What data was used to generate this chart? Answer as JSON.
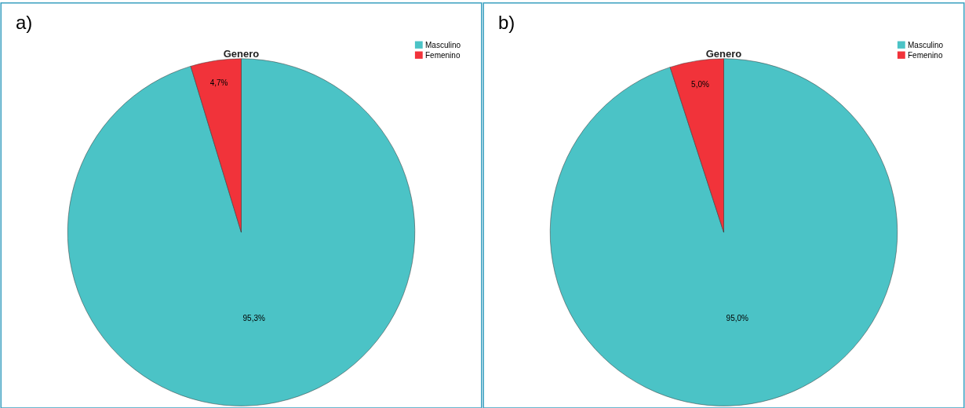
{
  "chart_data": [
    {
      "type": "pie",
      "title": "Genero",
      "annotations": [
        "a)"
      ],
      "categories": [
        "Masculino",
        "Femenino"
      ],
      "values": [
        95.3,
        4.7
      ],
      "value_labels": [
        "95,3%",
        "4,7%"
      ],
      "colors": [
        "#4bc3c6",
        "#f1333a"
      ],
      "legend": "top right"
    },
    {
      "type": "pie",
      "title": "Genero",
      "annotations": [
        "b)"
      ],
      "categories": [
        "Masculino",
        "Femenino"
      ],
      "values": [
        95.0,
        5.0
      ],
      "value_labels": [
        "95,0%",
        "5,0%"
      ],
      "colors": [
        "#4bc3c6",
        "#f1333a"
      ],
      "legend": "top right"
    }
  ]
}
